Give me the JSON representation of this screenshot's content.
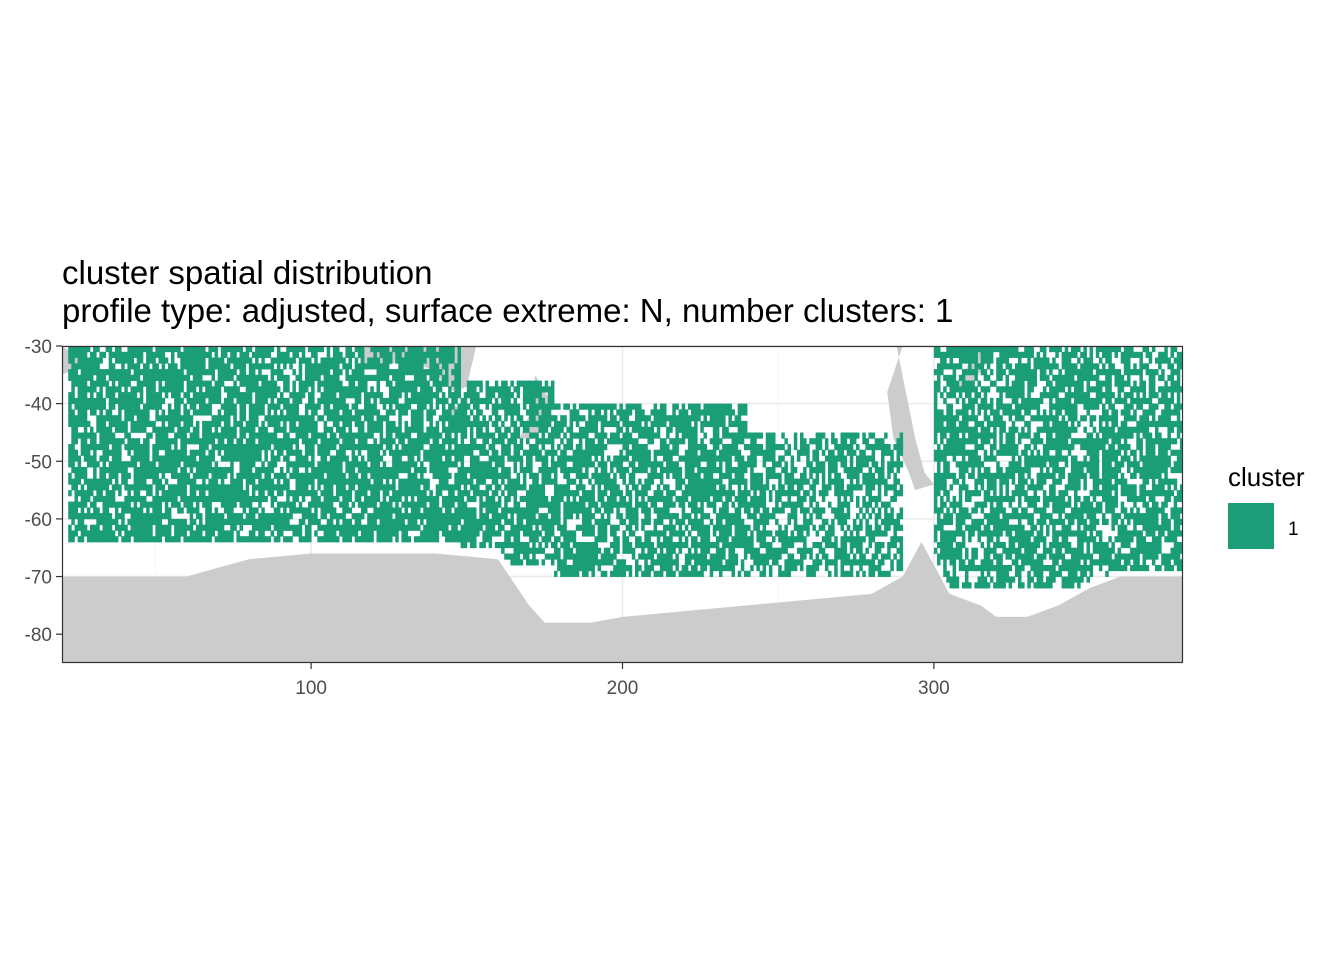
{
  "chart_data": {
    "type": "heatmap",
    "title": "cluster spatial distribution",
    "subtitle": "profile type: adjusted, surface extreme: N, number clusters: 1",
    "xlabel": "",
    "ylabel": "",
    "xlim": [
      20,
      380
    ],
    "ylim": [
      -85,
      -30
    ],
    "x_ticks": [
      100,
      200,
      300
    ],
    "x_tick_labels": [
      "100",
      "200",
      "300"
    ],
    "y_ticks": [
      -30,
      -40,
      -50,
      -60,
      -70,
      -80
    ],
    "y_tick_labels": [
      "-30",
      "-40",
      "-50",
      "-60",
      "-70",
      "-80"
    ],
    "grid": true,
    "legend": {
      "title": "cluster",
      "placement": "right",
      "entries": [
        {
          "label": "1",
          "color": "#1b9e77"
        }
      ]
    },
    "colors": {
      "cluster_1": "#1b9e77",
      "land": "#cccccc",
      "panel_bg": "#ffffff",
      "grid": "#ebebeb"
    },
    "cell_size_deg": 1,
    "land": {
      "antarctica_coast": [
        [
          20,
          -70
        ],
        [
          40,
          -70
        ],
        [
          60,
          -70
        ],
        [
          80,
          -67
        ],
        [
          100,
          -66
        ],
        [
          120,
          -66
        ],
        [
          140,
          -66
        ],
        [
          160,
          -67
        ],
        [
          165,
          -71
        ],
        [
          170,
          -75
        ],
        [
          175,
          -78
        ],
        [
          190,
          -78
        ],
        [
          200,
          -77
        ],
        [
          220,
          -76
        ],
        [
          240,
          -75
        ],
        [
          260,
          -74
        ],
        [
          280,
          -73
        ],
        [
          290,
          -70
        ],
        [
          296,
          -64
        ],
        [
          300,
          -68
        ],
        [
          305,
          -73
        ],
        [
          315,
          -75
        ],
        [
          320,
          -77
        ],
        [
          330,
          -77
        ],
        [
          340,
          -75
        ],
        [
          350,
          -72
        ],
        [
          360,
          -70
        ],
        [
          380,
          -70
        ]
      ],
      "africa": [
        [
          20,
          -35
        ],
        [
          28,
          -33
        ],
        [
          20,
          -30
        ]
      ],
      "australia": [
        [
          115,
          -30
        ],
        [
          116,
          -34
        ],
        [
          123,
          -34
        ],
        [
          130,
          -32
        ],
        [
          138,
          -34
        ],
        [
          146,
          -38
        ],
        [
          150,
          -37
        ],
        [
          153,
          -30
        ]
      ],
      "tasmania": [
        [
          145,
          -40
        ],
        [
          148,
          -41
        ],
        [
          146,
          -43
        ],
        [
          144,
          -41
        ]
      ],
      "new_zealand": [
        [
          172,
          -35
        ],
        [
          175,
          -38
        ],
        [
          178,
          -40
        ],
        [
          172,
          -46
        ],
        [
          167,
          -46
        ],
        [
          170,
          -42
        ]
      ],
      "south_america": [
        [
          288,
          -30
        ],
        [
          291,
          -38
        ],
        [
          294,
          -46
        ],
        [
          297,
          -52
        ],
        [
          300,
          -54
        ],
        [
          294,
          -55
        ],
        [
          292,
          -52
        ],
        [
          287,
          -46
        ],
        [
          285,
          -38
        ],
        [
          290,
          -30
        ]
      ],
      "south_america_east": [
        [
          315,
          -30
        ],
        [
          318,
          -32
        ],
        [
          313,
          -36
        ],
        [
          305,
          -38
        ],
        [
          303,
          -40
        ]
      ]
    },
    "occupied_bands": [
      {
        "lat": [
          -64,
          -30
        ],
        "lon": [
          22,
          148
        ],
        "density": 0.78
      },
      {
        "lat": [
          -68,
          -36
        ],
        "lon": [
          148,
          178
        ],
        "density": 0.72
      },
      {
        "lat": [
          -70,
          -40
        ],
        "lon": [
          178,
          240
        ],
        "density": 0.7
      },
      {
        "lat": [
          -70,
          -45
        ],
        "lon": [
          240,
          290
        ],
        "density": 0.62
      },
      {
        "lat": [
          -72,
          -30
        ],
        "lon": [
          300,
          380
        ],
        "density": 0.68
      }
    ]
  }
}
